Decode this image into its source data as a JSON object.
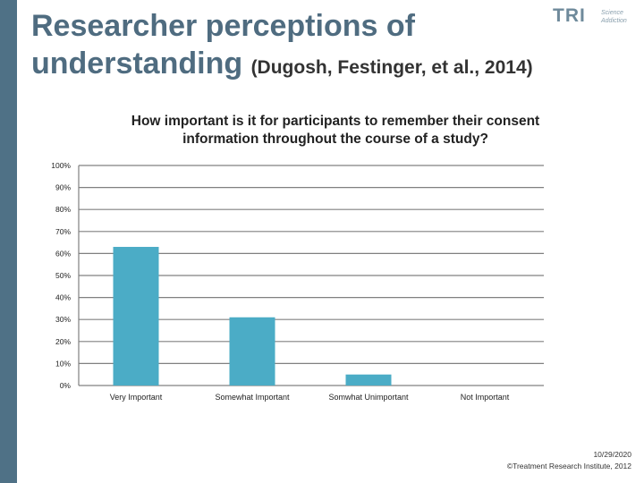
{
  "slide": {
    "title": "Researcher perceptions of understanding",
    "citation": "(Dugosh, Festinger, et al., 2014)"
  },
  "logo": {
    "text": "TRI",
    "tagline": "Science Addiction",
    "color": "#6f8a9b"
  },
  "footer": {
    "date": "10/29/2020",
    "copyright": "©Treatment Research Institute, 2012"
  },
  "colors": {
    "bar": "#4bacc6",
    "sidebar": "#4f7186",
    "title": "#4f6c80"
  },
  "chart_data": {
    "type": "bar",
    "title": "How important is it for participants to remember their consent information throughout the course of a study?",
    "categories": [
      "Very Important",
      "Somewhat Important",
      "Somwhat Unimportant",
      "Not Important"
    ],
    "values": [
      63,
      31,
      5,
      0
    ],
    "unit": "%",
    "ylim": [
      0,
      100
    ],
    "yticks": [
      0,
      10,
      20,
      30,
      40,
      50,
      60,
      70,
      80,
      90,
      100
    ],
    "grid": true,
    "legend": "none",
    "xlabel": "",
    "ylabel": ""
  }
}
